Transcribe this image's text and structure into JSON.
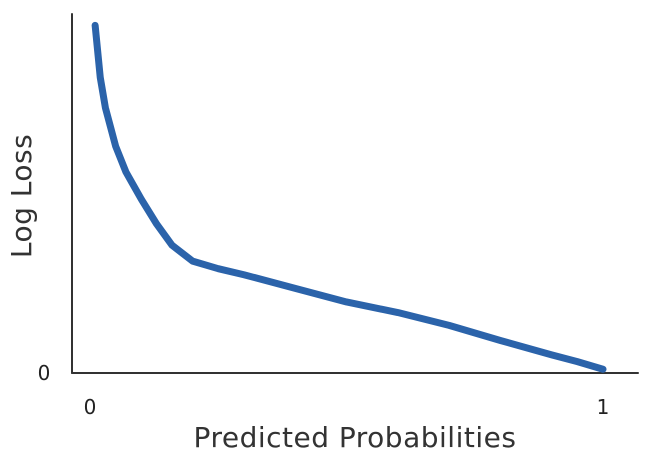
{
  "chart_data": {
    "type": "line",
    "title": "",
    "xlabel": "Predicted Probabilities",
    "ylabel": "Log Loss",
    "x_ticks": [
      "0",
      "1"
    ],
    "y_ticks": [
      "0"
    ],
    "xlim": [
      0,
      1
    ],
    "ylim": [
      0,
      4.75
    ],
    "grid": false,
    "series": [
      {
        "color": "#2b63aa",
        "points": [
          {
            "x": 0.01,
            "y": 4.6
          },
          {
            "x": 0.02,
            "y": 3.91
          },
          {
            "x": 0.03,
            "y": 3.51
          },
          {
            "x": 0.05,
            "y": 3.0
          },
          {
            "x": 0.07,
            "y": 2.66
          },
          {
            "x": 0.1,
            "y": 2.3
          },
          {
            "x": 0.13,
            "y": 1.97
          },
          {
            "x": 0.16,
            "y": 1.69
          },
          {
            "x": 0.2,
            "y": 1.48
          },
          {
            "x": 0.25,
            "y": 1.38
          },
          {
            "x": 0.3,
            "y": 1.3
          },
          {
            "x": 0.4,
            "y": 1.12
          },
          {
            "x": 0.5,
            "y": 0.94
          },
          {
            "x": 0.6,
            "y": 0.8
          },
          {
            "x": 0.7,
            "y": 0.63
          },
          {
            "x": 0.8,
            "y": 0.43
          },
          {
            "x": 0.9,
            "y": 0.24
          },
          {
            "x": 0.95,
            "y": 0.15
          },
          {
            "x": 1.0,
            "y": 0.05
          }
        ]
      }
    ]
  }
}
